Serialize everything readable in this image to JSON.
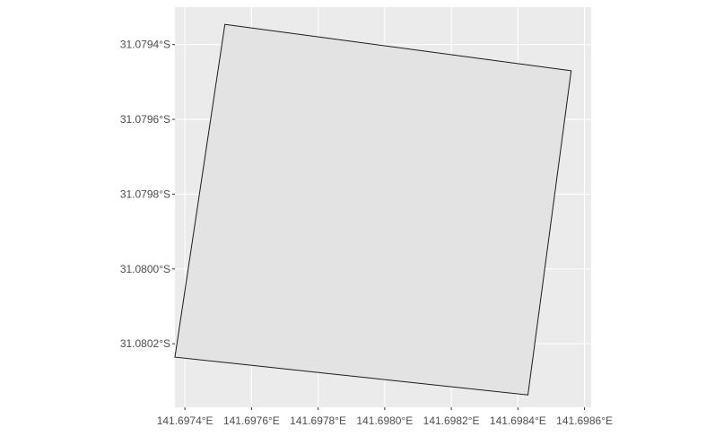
{
  "chart_data": {
    "type": "map",
    "title": "",
    "xlabel": "",
    "ylabel": "",
    "x_ticks": [
      {
        "value": 141.6974,
        "label": "141.6974°E"
      },
      {
        "value": 141.6976,
        "label": "141.6976°E"
      },
      {
        "value": 141.6978,
        "label": "141.6978°E"
      },
      {
        "value": 141.698,
        "label": "141.6980°E"
      },
      {
        "value": 141.6982,
        "label": "141.6982°E"
      },
      {
        "value": 141.6984,
        "label": "141.6984°E"
      },
      {
        "value": 141.6986,
        "label": "141.6986°E"
      }
    ],
    "y_ticks": [
      {
        "value": -31.0794,
        "label": "31.0794°S"
      },
      {
        "value": -31.0796,
        "label": "31.0796°S"
      },
      {
        "value": -31.0798,
        "label": "31.0798°S"
      },
      {
        "value": -31.08,
        "label": "31.0800°S"
      },
      {
        "value": -31.0802,
        "label": "31.0802°S"
      }
    ],
    "xlim": [
      141.69737,
      141.69862
    ],
    "ylim": [
      -31.08037,
      -31.0793
    ],
    "grid": true,
    "polygon": {
      "name": "",
      "fill": "#e3e3e3",
      "stroke": "#1a1a1a",
      "vertices": [
        [
          141.69752,
          -31.079346
        ],
        [
          141.69856,
          -31.07947
        ],
        [
          141.69843,
          -31.080337
        ],
        [
          141.69737,
          -31.080236
        ]
      ]
    },
    "colors": {
      "panel_background": "#ebebeb",
      "grid_line": "#ffffff",
      "tick_label": "#4d4d4d",
      "tick_mark": "#333333"
    }
  }
}
